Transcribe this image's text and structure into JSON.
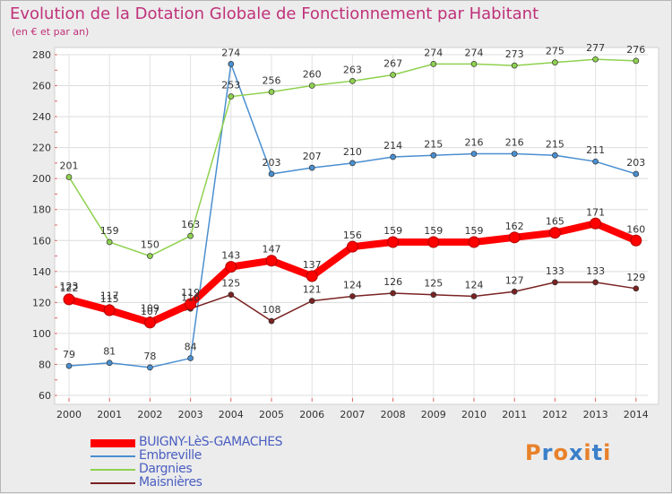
{
  "header": {
    "title": "Evolution de la Dotation Globale de Fonctionnement par Habitant",
    "subtitle": "(en € et par an)"
  },
  "logo": {
    "text": "Proxiti",
    "colors": [
      "#e8812a",
      "#3a7fc9",
      "#e8812a",
      "#3a7fc9",
      "#e8812a",
      "#3a7fc9",
      "#e8812a"
    ]
  },
  "chart_data": {
    "type": "line",
    "title": "Evolution de la Dotation Globale de Fonctionnement par Habitant",
    "subtitle": "(en € et par an)",
    "xlabel": "",
    "ylabel": "",
    "x": [
      "2000",
      "2001",
      "2002",
      "2003",
      "2004",
      "2005",
      "2006",
      "2007",
      "2008",
      "2009",
      "2010",
      "2011",
      "2012",
      "2013",
      "2014"
    ],
    "ylim": [
      60,
      280
    ],
    "yticks": [
      60,
      80,
      100,
      120,
      140,
      160,
      180,
      200,
      220,
      240,
      260,
      280
    ],
    "grid": "horizontal",
    "legend_position": "bottom-left",
    "series": [
      {
        "name": "BUIGNY-LèS-GAMACHES",
        "color": "#ff0000",
        "emphasis": true,
        "values": [
          122,
          115,
          107,
          119,
          143,
          147,
          137,
          156,
          159,
          159,
          159,
          162,
          165,
          171,
          160
        ]
      },
      {
        "name": "Embreville",
        "color": "#4a8fd0",
        "values": [
          79,
          81,
          78,
          84,
          274,
          203,
          207,
          210,
          214,
          215,
          216,
          216,
          215,
          211,
          203
        ]
      },
      {
        "name": "Dargnies",
        "color": "#8fd14f",
        "values": [
          201,
          159,
          150,
          163,
          253,
          256,
          260,
          263,
          267,
          274,
          274,
          273,
          275,
          277,
          276
        ]
      },
      {
        "name": "Maisnières",
        "color": "#7a2222",
        "values": [
          123,
          117,
          109,
          116,
          125,
          108,
          121,
          124,
          126,
          125,
          124,
          127,
          133,
          133,
          129
        ]
      }
    ]
  }
}
